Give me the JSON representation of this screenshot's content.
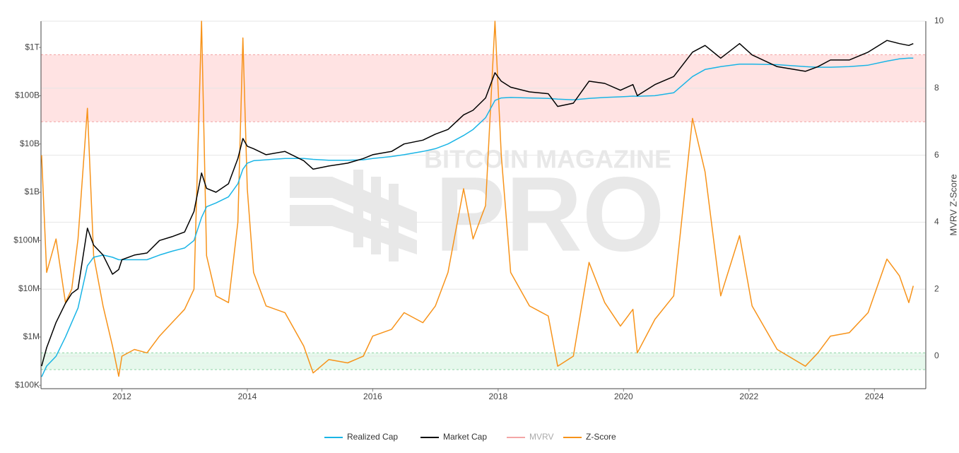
{
  "chart_data": {
    "type": "line",
    "watermark": [
      "BITCOIN MAGAZINE",
      "PRO"
    ],
    "y2label": "MVRV Z-Score",
    "yscale": "log",
    "grid": true,
    "legend": "bottom",
    "x": [
      2010.72,
      2010.8,
      2010.95,
      2011.1,
      2011.2,
      2011.3,
      2011.45,
      2011.55,
      2011.7,
      2011.85,
      2011.95,
      2012.0,
      2012.2,
      2012.4,
      2012.6,
      2012.8,
      2013.0,
      2013.15,
      2013.27,
      2013.35,
      2013.5,
      2013.7,
      2013.85,
      2013.93,
      2014.0,
      2014.1,
      2014.3,
      2014.6,
      2014.9,
      2015.05,
      2015.3,
      2015.6,
      2015.85,
      2016.0,
      2016.3,
      2016.5,
      2016.8,
      2017.0,
      2017.2,
      2017.45,
      2017.6,
      2017.8,
      2017.95,
      2018.05,
      2018.2,
      2018.5,
      2018.8,
      2018.95,
      2019.2,
      2019.45,
      2019.7,
      2019.95,
      2020.15,
      2020.22,
      2020.5,
      2020.8,
      2021.1,
      2021.3,
      2021.55,
      2021.85,
      2022.05,
      2022.45,
      2022.9,
      2023.1,
      2023.3,
      2023.6,
      2023.9,
      2024.2,
      2024.4,
      2024.55,
      2024.62
    ],
    "series": [
      {
        "name": "Realized Cap",
        "color": "#1ab5e6",
        "axis": "y",
        "values": [
          150000,
          250000,
          400000,
          1000000,
          2000000,
          4000000,
          30000000,
          45000000,
          50000000,
          45000000,
          40000000,
          40000000,
          40000000,
          40000000,
          50000000,
          60000000,
          70000000,
          100000000,
          300000000,
          500000000,
          600000000,
          800000000,
          1500000000,
          3000000000,
          4000000000,
          4500000000,
          4700000000,
          5000000000,
          5000000000,
          4800000000,
          4600000000,
          4600000000,
          4700000000,
          5000000000,
          5500000000,
          6000000000,
          7000000000,
          8000000000,
          10000000000,
          15000000000,
          20000000000,
          35000000000,
          80000000000,
          90000000000,
          92000000000,
          90000000000,
          88000000000,
          85000000000,
          82000000000,
          88000000000,
          92000000000,
          95000000000,
          98000000000,
          97000000000,
          100000000000,
          115000000000,
          250000000000,
          350000000000,
          400000000000,
          450000000000,
          450000000000,
          440000000000,
          400000000000,
          390000000000,
          390000000000,
          400000000000,
          430000000000,
          520000000000,
          580000000000,
          600000000000,
          600000000000
        ]
      },
      {
        "name": "Market Cap",
        "color": "#000000",
        "axis": "y",
        "values": [
          250000,
          600000,
          2000000,
          5000000,
          8000000,
          10000000,
          180000000,
          80000000,
          50000000,
          20000000,
          25000000,
          40000000,
          50000000,
          55000000,
          100000000,
          120000000,
          150000000,
          400000000,
          2500000000,
          1200000000,
          1000000000,
          1500000000,
          5000000000,
          13000000000,
          9000000000,
          8000000000,
          6000000000,
          7000000000,
          4500000000,
          3000000000,
          3500000000,
          4000000000,
          5000000000,
          6000000000,
          7000000000,
          10000000000,
          12000000000,
          16000000000,
          20000000000,
          40000000000,
          50000000000,
          90000000000,
          300000000000,
          200000000000,
          150000000000,
          120000000000,
          110000000000,
          60000000000,
          70000000000,
          200000000000,
          180000000000,
          130000000000,
          170000000000,
          100000000000,
          170000000000,
          250000000000,
          800000000000,
          1100000000000,
          600000000000,
          1200000000000,
          700000000000,
          400000000000,
          320000000000,
          400000000000,
          550000000000,
          550000000000,
          800000000000,
          1400000000000,
          1200000000000,
          1100000000000,
          1200000000000
        ]
      },
      {
        "name": "MVRV",
        "color": "#f4a6a6",
        "axis": "y2",
        "hidden": true
      },
      {
        "name": "Z-Score",
        "color": "#f7931a",
        "axis": "y2",
        "values": [
          6.0,
          2.5,
          3.5,
          1.6,
          2.0,
          3.5,
          7.4,
          3.0,
          1.5,
          0.3,
          -0.6,
          0.0,
          0.2,
          0.1,
          0.6,
          1.0,
          1.4,
          2.0,
          10.0,
          3.0,
          1.8,
          1.6,
          4.0,
          9.5,
          5.0,
          2.5,
          1.5,
          1.3,
          0.3,
          -0.5,
          -0.1,
          -0.2,
          0.0,
          0.6,
          0.8,
          1.3,
          1.0,
          1.5,
          2.5,
          5.0,
          3.5,
          4.5,
          10.0,
          6.0,
          2.5,
          1.5,
          1.2,
          -0.3,
          0.0,
          2.8,
          1.6,
          0.9,
          1.4,
          0.1,
          1.1,
          1.8,
          7.1,
          5.5,
          1.8,
          3.6,
          1.5,
          0.2,
          -0.3,
          0.1,
          0.6,
          0.7,
          1.3,
          2.9,
          2.4,
          1.6,
          2.1
        ]
      }
    ],
    "bands": [
      {
        "y2lim": [
          7,
          9
        ],
        "color": "#ffe3e3",
        "line": "#f2a3a3"
      },
      {
        "y2lim": [
          -0.4,
          0.1
        ],
        "color": "#e6f8ec",
        "line": "#8fd3a4"
      }
    ],
    "xlim": [
      2010.71,
      2024.82
    ],
    "xticks": [
      2012,
      2014,
      2016,
      2018,
      2020,
      2022,
      2024
    ],
    "ylim": [
      85000,
      3500000000000
    ],
    "yticks": [
      {
        "value": 100000,
        "label": "$100K"
      },
      {
        "value": 1000000,
        "label": "$1M"
      },
      {
        "value": 10000000,
        "label": "$10M"
      },
      {
        "value": 100000000,
        "label": "$100M"
      },
      {
        "value": 1000000000,
        "label": "$1B"
      },
      {
        "value": 10000000000,
        "label": "$10B"
      },
      {
        "value": 100000000000,
        "label": "$100B"
      },
      {
        "value": 1000000000000,
        "label": "$1T"
      }
    ],
    "y2lim": [
      -0.97,
      10
    ],
    "y2ticks": [
      0,
      2,
      4,
      6,
      8,
      10
    ]
  }
}
